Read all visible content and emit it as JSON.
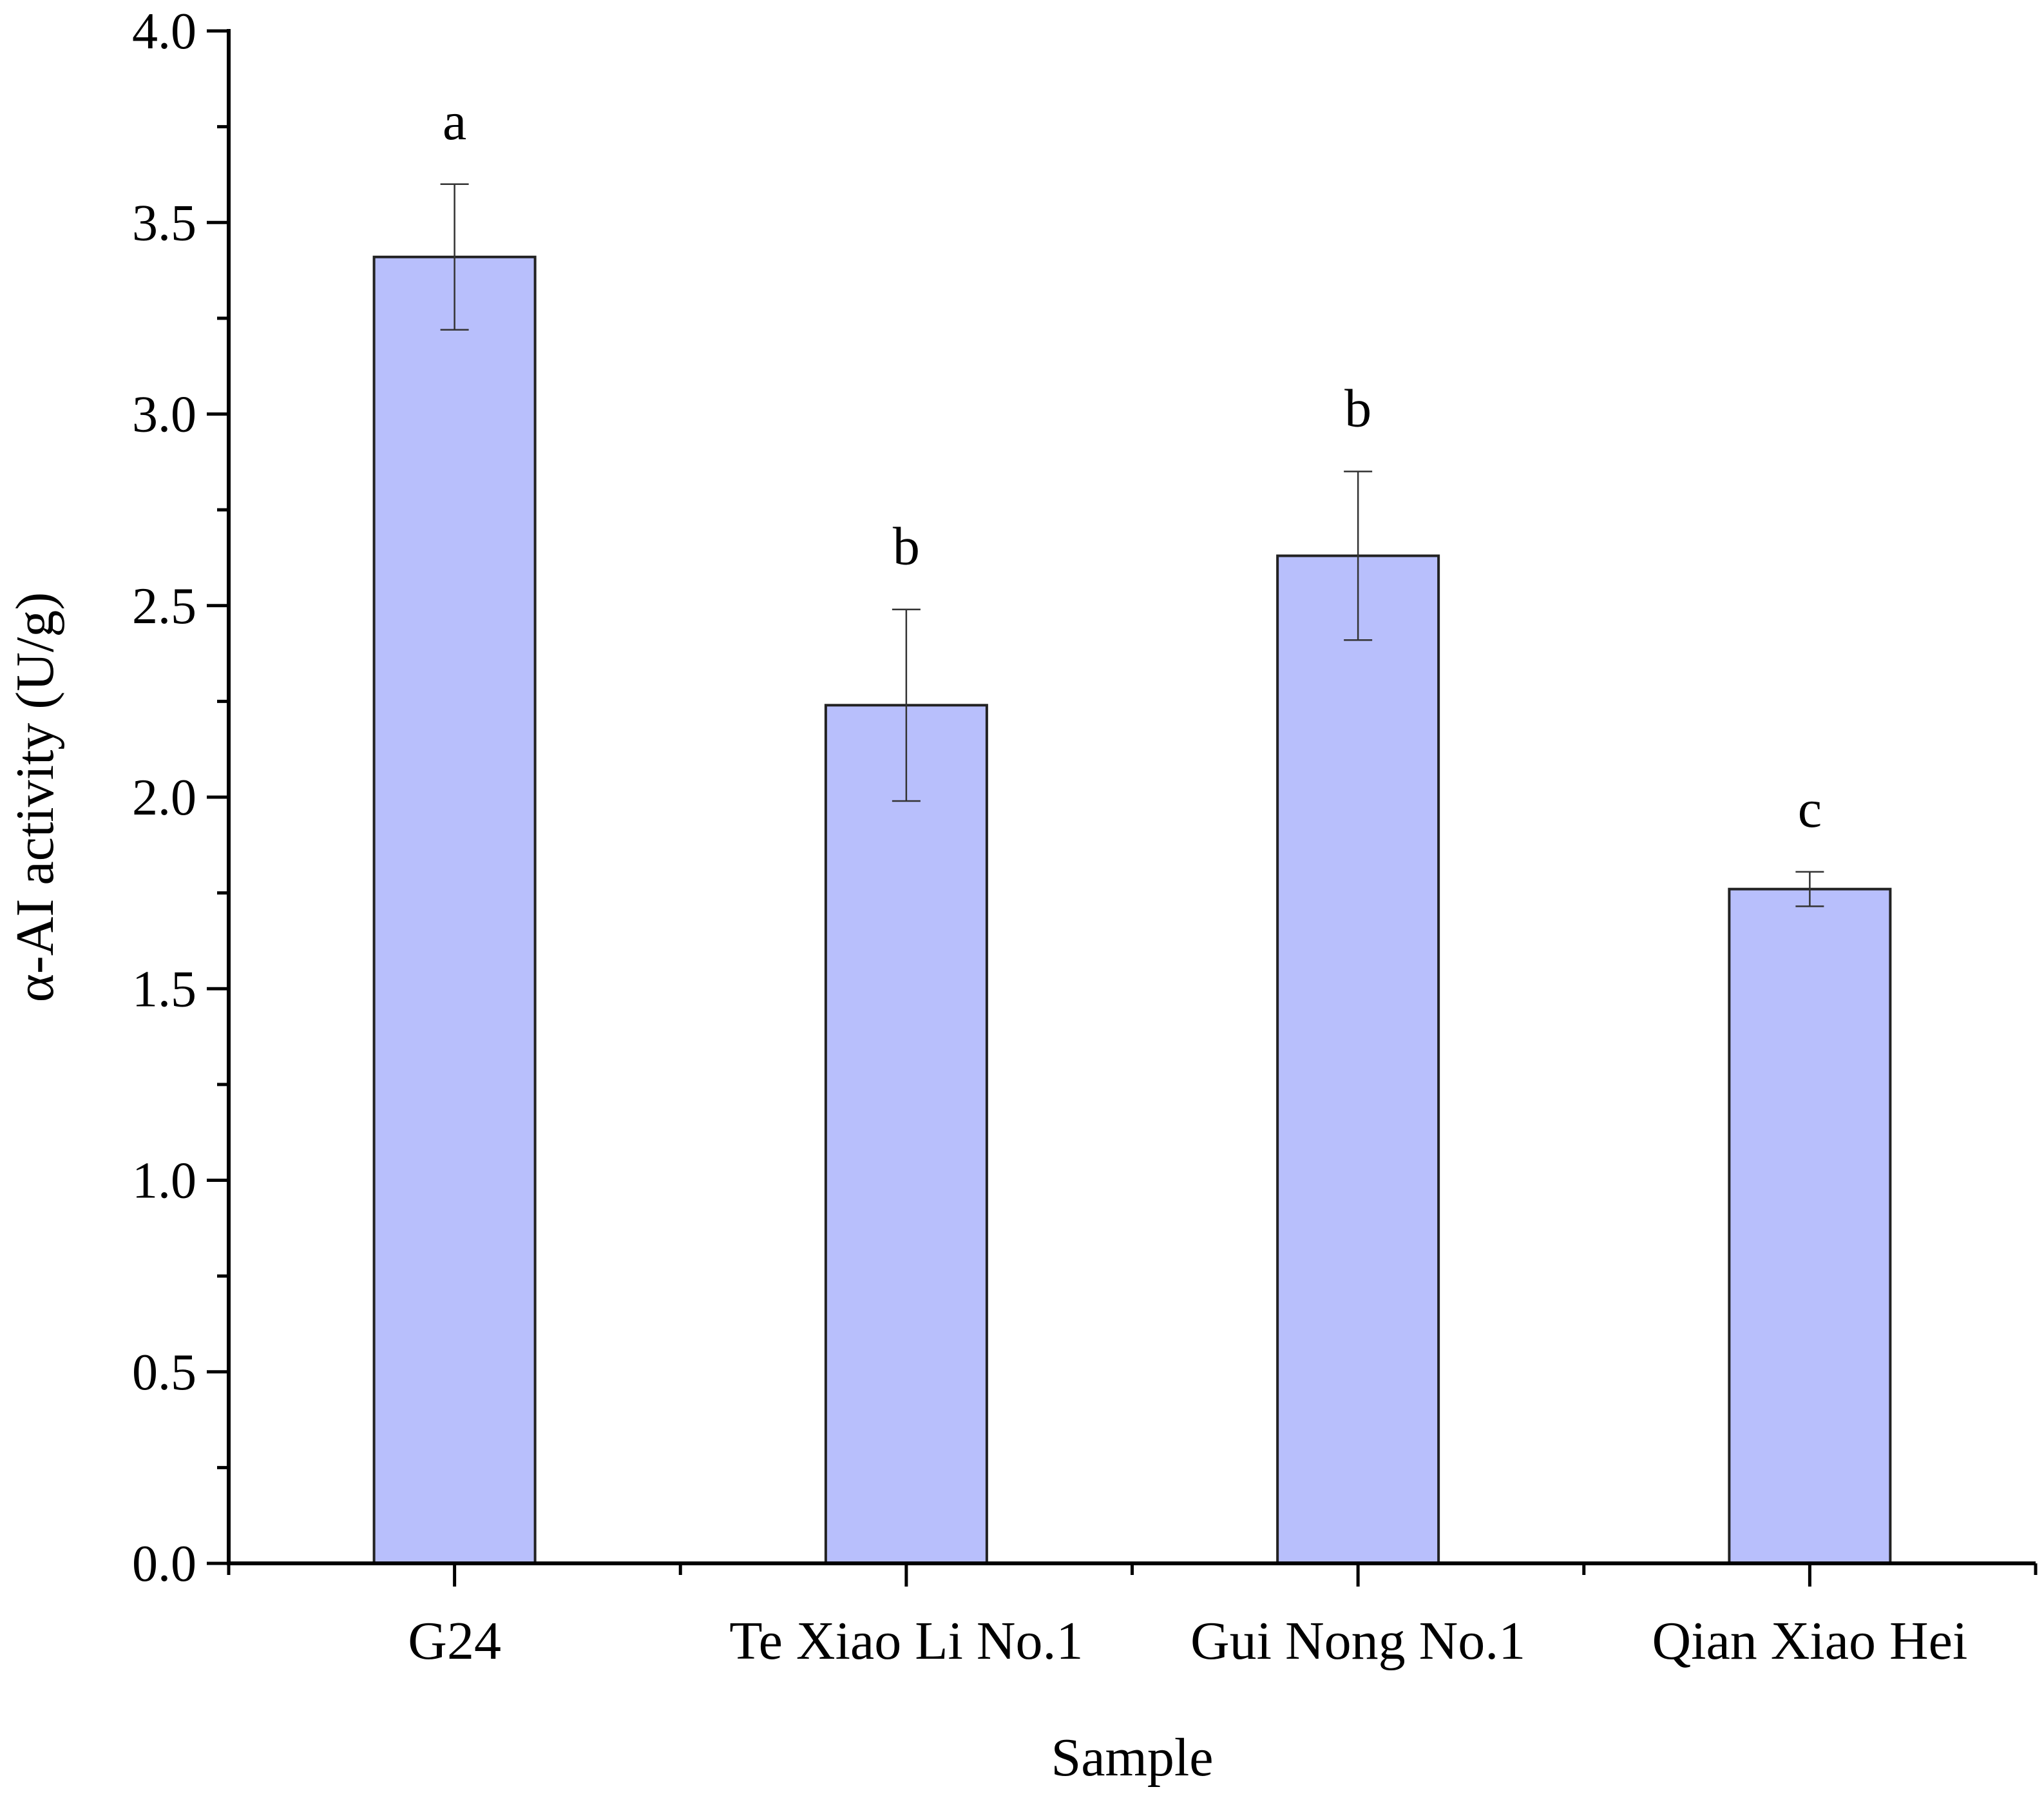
{
  "chart_data": {
    "type": "bar",
    "xlabel": "Sample",
    "ylabel": "α-AI activity (U/g)",
    "ylim": [
      0,
      4.0
    ],
    "yticks": [
      "0.0",
      "0.5",
      "1.0",
      "1.5",
      "2.0",
      "2.5",
      "3.0",
      "3.5",
      "4.0"
    ],
    "categories": [
      "G24",
      "Te Xiao Li No.1",
      "Gui Nong No.1",
      "Qian Xiao Hei"
    ],
    "values": [
      3.41,
      2.24,
      2.63,
      1.76
    ],
    "errors": [
      0.19,
      0.25,
      0.22,
      0.045
    ],
    "significance": [
      "a",
      "b",
      "b",
      "c"
    ],
    "bar_color": "#b8bffc",
    "bar_edge_color": "#222222",
    "grid": false,
    "legend": "none"
  }
}
